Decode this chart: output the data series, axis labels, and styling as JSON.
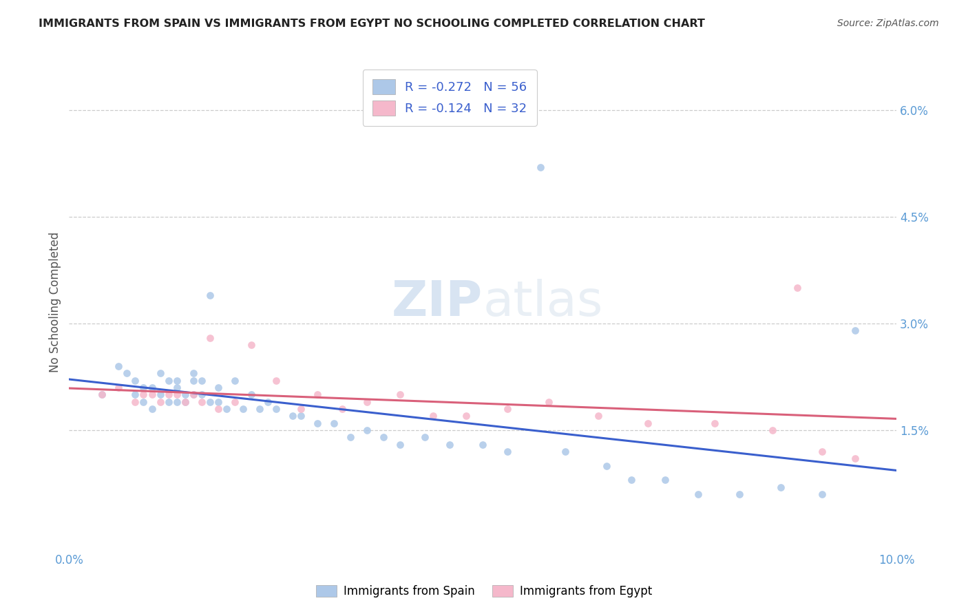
{
  "title": "IMMIGRANTS FROM SPAIN VS IMMIGRANTS FROM EGYPT NO SCHOOLING COMPLETED CORRELATION CHART",
  "source": "Source: ZipAtlas.com",
  "ylabel": "No Schooling Completed",
  "xlim": [
    0.0,
    0.1
  ],
  "ylim": [
    -0.002,
    0.068
  ],
  "ytick_vals": [
    0.015,
    0.03,
    0.045,
    0.06
  ],
  "ytick_labels": [
    "1.5%",
    "3.0%",
    "4.5%",
    "6.0%"
  ],
  "xtick_vals": [
    0.0,
    0.1
  ],
  "xtick_labels": [
    "0.0%",
    "10.0%"
  ],
  "legend_r1": "R = -0.272",
  "legend_n1": "N = 56",
  "legend_r2": "R = -0.124",
  "legend_n2": "N = 32",
  "legend_label1": "Immigrants from Spain",
  "legend_label2": "Immigrants from Egypt",
  "color_spain": "#adc8e8",
  "color_egypt": "#f5b8cb",
  "line_color_spain": "#3a5fcd",
  "line_color_egypt": "#d9607a",
  "legend_text_color": "#3a5fcd",
  "title_color": "#222222",
  "axis_label_color": "#5b9bd5",
  "ylabel_color": "#555555",
  "background_color": "#ffffff",
  "grid_color": "#cccccc",
  "watermark_color": "#d8e4f0",
  "source_color": "#555555",
  "spain_x": [
    0.004,
    0.006,
    0.007,
    0.008,
    0.008,
    0.009,
    0.009,
    0.01,
    0.01,
    0.011,
    0.011,
    0.012,
    0.012,
    0.013,
    0.013,
    0.013,
    0.014,
    0.014,
    0.015,
    0.015,
    0.015,
    0.016,
    0.016,
    0.017,
    0.017,
    0.018,
    0.018,
    0.019,
    0.02,
    0.021,
    0.022,
    0.023,
    0.024,
    0.025,
    0.027,
    0.028,
    0.03,
    0.032,
    0.034,
    0.036,
    0.038,
    0.04,
    0.043,
    0.046,
    0.05,
    0.053,
    0.057,
    0.06,
    0.065,
    0.068,
    0.072,
    0.076,
    0.081,
    0.086,
    0.091,
    0.095
  ],
  "spain_y": [
    0.02,
    0.024,
    0.023,
    0.02,
    0.022,
    0.019,
    0.021,
    0.018,
    0.021,
    0.02,
    0.023,
    0.019,
    0.022,
    0.021,
    0.019,
    0.022,
    0.02,
    0.019,
    0.022,
    0.02,
    0.023,
    0.02,
    0.022,
    0.034,
    0.019,
    0.021,
    0.019,
    0.018,
    0.022,
    0.018,
    0.02,
    0.018,
    0.019,
    0.018,
    0.017,
    0.017,
    0.016,
    0.016,
    0.014,
    0.015,
    0.014,
    0.013,
    0.014,
    0.013,
    0.013,
    0.012,
    0.052,
    0.012,
    0.01,
    0.008,
    0.008,
    0.006,
    0.006,
    0.007,
    0.006,
    0.029
  ],
  "egypt_x": [
    0.004,
    0.006,
    0.008,
    0.009,
    0.01,
    0.011,
    0.012,
    0.013,
    0.014,
    0.015,
    0.016,
    0.017,
    0.018,
    0.02,
    0.022,
    0.025,
    0.028,
    0.03,
    0.033,
    0.036,
    0.04,
    0.044,
    0.048,
    0.053,
    0.058,
    0.064,
    0.07,
    0.078,
    0.085,
    0.088,
    0.091,
    0.095
  ],
  "egypt_y": [
    0.02,
    0.021,
    0.019,
    0.02,
    0.02,
    0.019,
    0.02,
    0.02,
    0.019,
    0.02,
    0.019,
    0.028,
    0.018,
    0.019,
    0.027,
    0.022,
    0.018,
    0.02,
    0.018,
    0.019,
    0.02,
    0.017,
    0.017,
    0.018,
    0.019,
    0.017,
    0.016,
    0.016,
    0.015,
    0.035,
    0.012,
    0.011
  ]
}
